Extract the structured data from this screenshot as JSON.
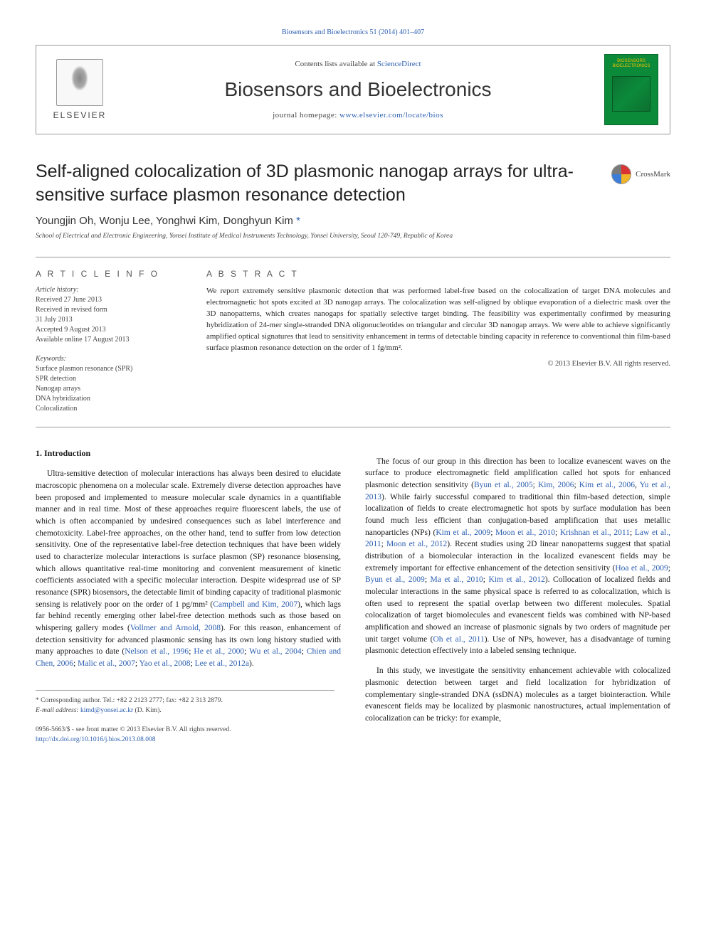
{
  "top_link": "Biosensors and Bioelectronics 51 (2014) 401–407",
  "header": {
    "contents_prefix": "Contents lists available at ",
    "contents_link": "ScienceDirect",
    "journal_name": "Biosensors and Bioelectronics",
    "homepage_prefix": "journal homepage: ",
    "homepage_url": "www.elsevier.com/locate/bios",
    "elsevier_label": "ELSEVIER",
    "cover_text": "BIOSENSORS BIOELECTRONICS"
  },
  "title": "Self-aligned colocalization of 3D plasmonic nanogap arrays for ultra-sensitive surface plasmon resonance detection",
  "crossmark_label": "CrossMark",
  "authors_text": "Youngjin Oh, Wonju Lee, Yonghwi Kim, Donghyun Kim ",
  "corr_mark": "*",
  "affiliation": "School of Electrical and Electronic Engineering, Yonsei Institute of Medical Instruments Technology, Yonsei University, Seoul 120-749, Republic of Korea",
  "article_info_heading": "A R T I C L E  I N F O",
  "abstract_heading": "A B S T R A C T",
  "history": {
    "label": "Article history:",
    "items": [
      "Received 27 June 2013",
      "Received in revised form",
      "31 July 2013",
      "Accepted 9 August 2013",
      "Available online 17 August 2013"
    ]
  },
  "keywords": {
    "label": "Keywords:",
    "items": [
      "Surface plasmon resonance (SPR)",
      "SPR detection",
      "Nanogap arrays",
      "DNA hybridization",
      "Colocalization"
    ]
  },
  "abstract_text": "We report extremely sensitive plasmonic detection that was performed label-free based on the colocalization of target DNA molecules and electromagnetic hot spots excited at 3D nanogap arrays. The colocalization was self-aligned by oblique evaporation of a dielectric mask over the 3D nanopatterns, which creates nanogaps for spatially selective target binding. The feasibility was experimentally confirmed by measuring hybridization of 24-mer single-stranded DNA oligonucleotides on triangular and circular 3D nanogap arrays. We were able to achieve significantly amplified optical signatures that lead to sensitivity enhancement in terms of detectable binding capacity in reference to conventional thin film-based surface plasmon resonance detection on the order of 1 fg/mm².",
  "abstract_copyright": "© 2013 Elsevier B.V. All rights reserved.",
  "section1_heading": "1.  Introduction",
  "col1_p1a": "Ultra-sensitive detection of molecular interactions has always been desired to elucidate macroscopic phenomena on a molecular scale. Extremely diverse detection approaches have been proposed and implemented to measure molecular scale dynamics in a quantifiable manner and in real time. Most of these approaches require fluorescent labels, the use of which is often accompanied by undesired consequences such as label interference and chemotoxicity. Label-free approaches, on the other hand, tend to suffer from low detection sensitivity. One of the representative label-free detection techniques that have been widely used to characterize molecular interactions is surface plasmon (SP) resonance biosensing, which allows quantitative real-time monitoring and convenient measurement of kinetic coefficients associated with a specific molecular interaction. Despite widespread use of SP resonance (SPR) biosensors, the detectable limit of binding capacity of traditional plasmonic sensing is relatively poor on the order of 1 pg/mm² (",
  "ref_campbell": "Campbell and Kim, 2007",
  "col1_p1b": "), which lags far behind recently emerging other label-free detection methods such as those based on whispering gallery modes (",
  "ref_vollmer": "Vollmer and Arnold, 2008",
  "col1_p1c": "). For this reason, enhancement of detection sensitivity for advanced plasmonic sensing has its own long history studied with many approaches to date (",
  "ref_list1": "Nelson et al., 1996",
  "ref_list2": "He et al., 2000",
  "ref_list3": "Wu et al., 2004",
  "ref_list4": "Chien and Chen, 2006",
  "ref_list5": "Malic et al., 2007",
  "ref_list6": "Yao et al., 2008",
  "ref_list7": "Lee et al., 2012a",
  "col2_p1a": "The focus of our group in this direction has been to localize evanescent waves on the surface to produce electromagnetic field amplification called hot spots for enhanced plasmonic detection sensitivity (",
  "ref_byun05": "Byun et al., 2005",
  "ref_kim06": "Kim, 2006",
  "ref_kim06b": "Kim et al., 2006",
  "ref_yu13": "Yu et al., 2013",
  "col2_p1b": "). While fairly successful compared to traditional thin film-based detection, simple localization of fields to create electromagnetic hot spots by surface modulation has been found much less efficient than conjugation-based amplification that uses metallic nanoparticles (NPs) (",
  "ref_kim09": "Kim et al., 2009",
  "ref_moon10": "Moon et al., 2010",
  "ref_krishnan": "Krishnan et al., 2011",
  "ref_law11": "Law et al., 2011",
  "ref_moon12": "Moon et al., 2012",
  "col2_p1c": "). Recent studies using 2D linear nanopatterns suggest that spatial distribution of a biomolecular interaction in the localized evanescent fields may be extremely important for effective enhancement of the detection sensitivity (",
  "ref_hoa09": "Hoa et al., 2009",
  "ref_byun09": "Byun et al., 2009",
  "ref_ma10": "Ma et al., 2010",
  "ref_kim12": "Kim et al., 2012",
  "col2_p1d": "). Collocation of localized fields and molecular interactions in the same physical space is referred to as colocalization, which is often used to represent the spatial overlap between two different molecules. Spatial colocalization of target biomolecules and evanescent fields was combined with NP-based amplification and showed an increase of plasmonic signals by two orders of magnitude per unit target volume (",
  "ref_oh11": "Oh et al., 2011",
  "col2_p1e": "). Use of NPs, however, has a disadvantage of turning plasmonic detection effectively into a labeled sensing technique.",
  "col2_p2": "In this study, we investigate the sensitivity enhancement achievable with colocalized plasmonic detection between target and field localization for hybridization of complementary single-stranded DNA (ssDNA) molecules as a target biointeraction. While evanescent fields may be localized by plasmonic nanostructures, actual implementation of colocalization can be tricky: for example,",
  "footnote": {
    "corr_label": "* Corresponding author. Tel.: +82 2 2123 2777; fax: +82 2 313 2879.",
    "email_label": "E-mail address: ",
    "email": "kimd@yonsei.ac.kr",
    "email_suffix": " (D. Kim)."
  },
  "bottom": {
    "issn": "0956-5663/$ - see front matter © 2013 Elsevier B.V. All rights reserved.",
    "doi": "http://dx.doi.org/10.1016/j.bios.2013.08.008"
  },
  "colors": {
    "link": "#2a5db0",
    "text": "#1a1a1a",
    "cover_bg": "#0b8a3a",
    "cover_text": "#f0c000"
  }
}
